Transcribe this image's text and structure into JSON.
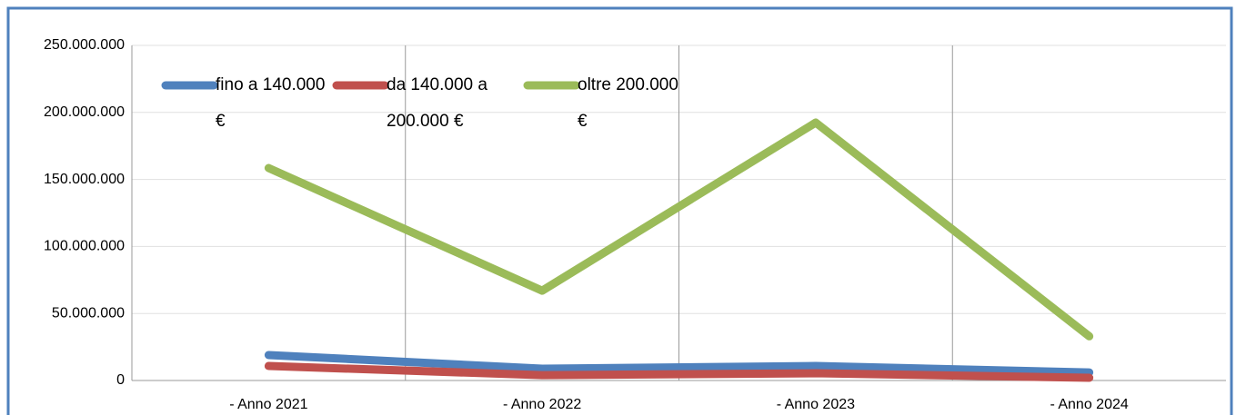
{
  "chart_data": {
    "type": "line",
    "categories": [
      "- Anno 2021",
      "- Anno 2022",
      "- Anno 2023",
      "- Anno 2024"
    ],
    "series": [
      {
        "name": "fino a 140.000 €",
        "color": "#4f81bd",
        "values": [
          19000000,
          8800000,
          10800000,
          6000000
        ]
      },
      {
        "name": "da 140.000 a 200.000 €",
        "color": "#c0504d",
        "values": [
          10800000,
          4000000,
          5400000,
          2000000
        ]
      },
      {
        "name": "oltre 200.000 €",
        "color": "#9bbb59",
        "values": [
          158500000,
          67000000,
          192400000,
          33000000
        ]
      }
    ],
    "ylim": [
      0,
      250000000
    ],
    "yticks": [
      0,
      {
        "value": 50000000,
        "label": "50.000.000"
      },
      {
        "value": 100000000,
        "label": "100.000.000"
      },
      {
        "value": 150000000,
        "label": "150.000.000"
      },
      {
        "value": 200000000,
        "label": "200.000.000"
      },
      {
        "value": 250000000,
        "label": "250.000.000"
      }
    ],
    "grid": true,
    "legend": "top-left"
  }
}
